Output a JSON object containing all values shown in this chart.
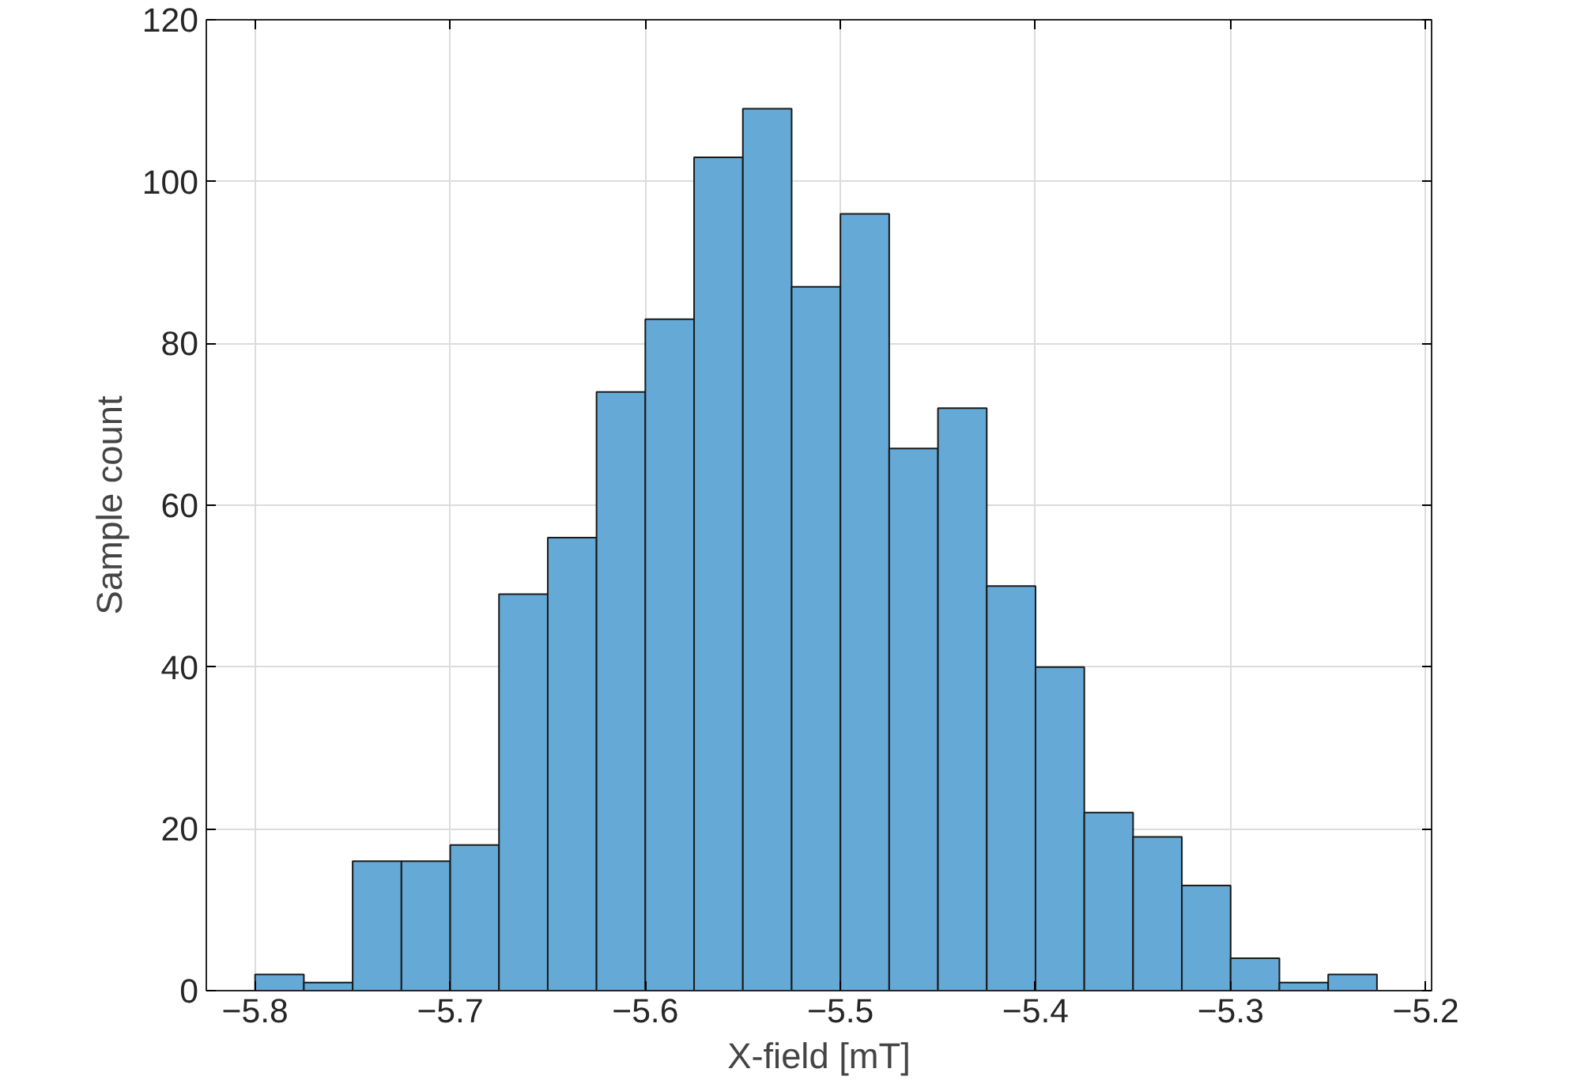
{
  "chart_data": {
    "type": "histogram",
    "xlabel": "X-field [mT]",
    "ylabel": "Sample count",
    "bins": [
      -5.8,
      -5.775,
      -5.75,
      -5.725,
      -5.7,
      -5.675,
      -5.65,
      -5.625,
      -5.6,
      -5.575,
      -5.55,
      -5.525,
      -5.5,
      -5.475,
      -5.45,
      -5.425,
      -5.4,
      -5.375,
      -5.35,
      -5.325,
      -5.3,
      -5.275,
      -5.25,
      -5.225
    ],
    "values": [
      2,
      1,
      16,
      16,
      18,
      49,
      56,
      74,
      83,
      103,
      109,
      87,
      96,
      67,
      72,
      50,
      40,
      22,
      19,
      13,
      4,
      1,
      2
    ],
    "color": "#65a9d7",
    "xlim": [
      -5.825,
      -5.197
    ],
    "xticks": [
      -5.8,
      -5.7,
      -5.6,
      -5.5,
      -5.4,
      -5.3,
      -5.2
    ],
    "ylim": [
      0,
      120
    ],
    "yticks": [
      0,
      20,
      40,
      60,
      80,
      100,
      120
    ],
    "grid": true
  }
}
